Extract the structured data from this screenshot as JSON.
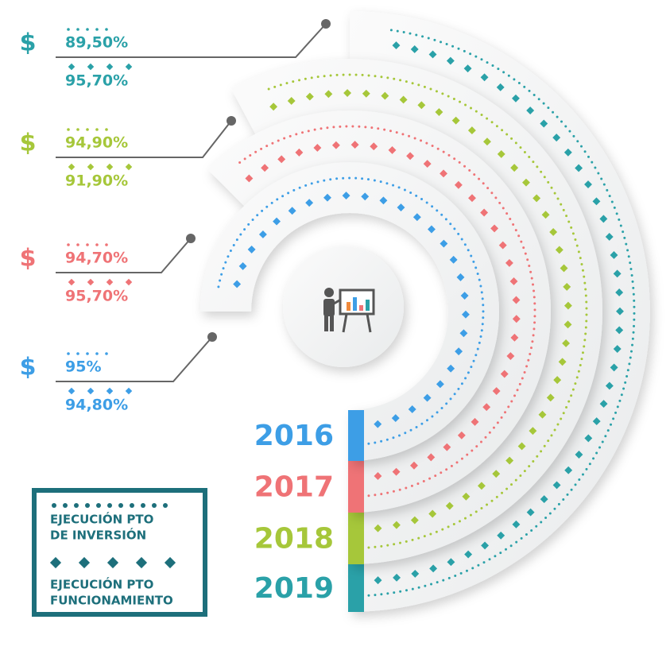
{
  "currency_symbol": "$",
  "rows": [
    {
      "year": "2016",
      "color": "#3d9ee6",
      "inversion": "95%",
      "funcionamiento": "94,80%"
    },
    {
      "year": "2017",
      "color": "#ef7376",
      "inversion": "94,70%",
      "funcionamiento": "95,70%"
    },
    {
      "year": "2018",
      "color": "#a6c73a",
      "inversion": "94,90%",
      "funcionamiento": "91,90%"
    },
    {
      "year": "2019",
      "color": "#2aa1a8",
      "inversion": "89,50%",
      "funcionamiento": "95,70%"
    }
  ],
  "legend": {
    "inversion": [
      "EJECUCIÓN PTO",
      "DE INVERSIÓN"
    ],
    "funcionamiento": [
      "EJECUCIÓN PTO",
      "FUNCIONAMIENTO"
    ]
  }
}
